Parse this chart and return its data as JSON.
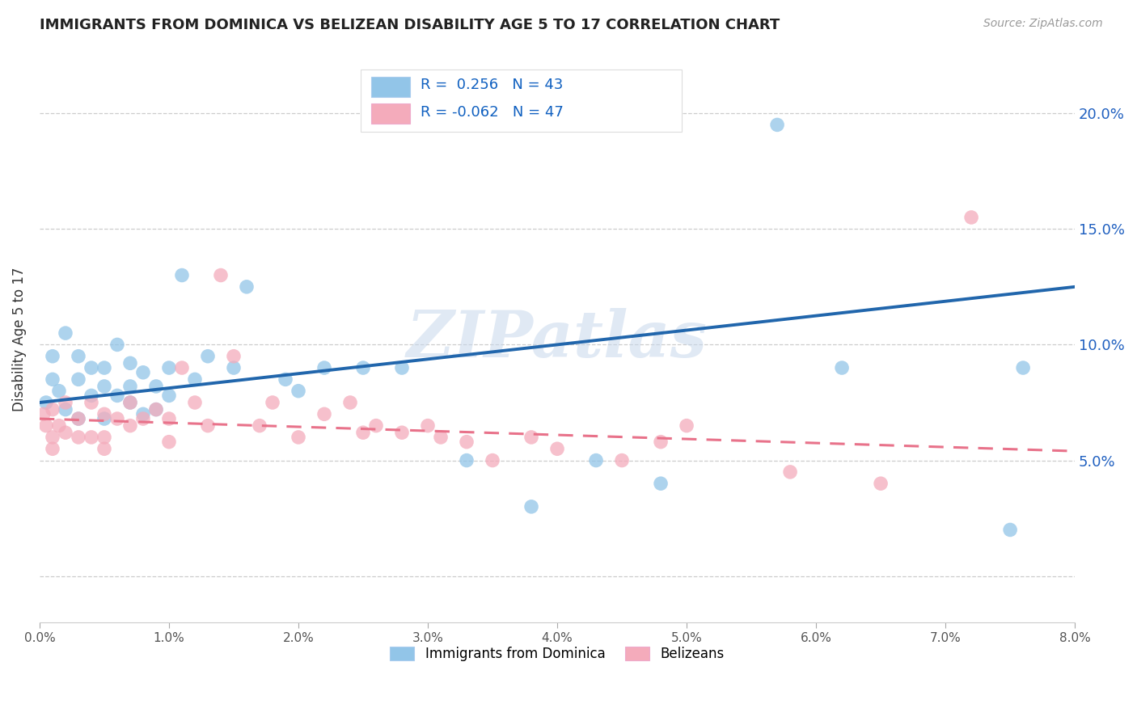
{
  "title": "IMMIGRANTS FROM DOMINICA VS BELIZEAN DISABILITY AGE 5 TO 17 CORRELATION CHART",
  "source": "Source: ZipAtlas.com",
  "ylabel": "Disability Age 5 to 17",
  "y_ticks": [
    0.0,
    0.05,
    0.1,
    0.15,
    0.2
  ],
  "y_tick_labels": [
    "",
    "5.0%",
    "10.0%",
    "15.0%",
    "20.0%"
  ],
  "xlim": [
    0.0,
    0.08
  ],
  "ylim": [
    -0.02,
    0.225
  ],
  "legend_label1": "Immigrants from Dominica",
  "legend_label2": "Belizeans",
  "r1": 0.256,
  "n1": 43,
  "r2": -0.062,
  "n2": 47,
  "color1": "#92C5E8",
  "color2": "#F4ABBB",
  "line_color1": "#2166AC",
  "line_color2": "#E8728A",
  "scatter1_x": [
    0.0005,
    0.001,
    0.001,
    0.0015,
    0.002,
    0.002,
    0.003,
    0.003,
    0.003,
    0.004,
    0.004,
    0.005,
    0.005,
    0.005,
    0.006,
    0.006,
    0.007,
    0.007,
    0.007,
    0.008,
    0.008,
    0.009,
    0.009,
    0.01,
    0.01,
    0.011,
    0.012,
    0.013,
    0.015,
    0.016,
    0.019,
    0.02,
    0.022,
    0.025,
    0.028,
    0.033,
    0.038,
    0.043,
    0.048,
    0.057,
    0.062,
    0.075,
    0.076
  ],
  "scatter1_y": [
    0.075,
    0.095,
    0.085,
    0.08,
    0.105,
    0.072,
    0.095,
    0.085,
    0.068,
    0.09,
    0.078,
    0.09,
    0.082,
    0.068,
    0.1,
    0.078,
    0.092,
    0.082,
    0.075,
    0.088,
    0.07,
    0.082,
    0.072,
    0.09,
    0.078,
    0.13,
    0.085,
    0.095,
    0.09,
    0.125,
    0.085,
    0.08,
    0.09,
    0.09,
    0.09,
    0.05,
    0.03,
    0.05,
    0.04,
    0.195,
    0.09,
    0.02,
    0.09
  ],
  "scatter2_x": [
    0.0003,
    0.0005,
    0.001,
    0.001,
    0.001,
    0.0015,
    0.002,
    0.002,
    0.003,
    0.003,
    0.004,
    0.004,
    0.005,
    0.005,
    0.005,
    0.006,
    0.007,
    0.007,
    0.008,
    0.009,
    0.01,
    0.01,
    0.011,
    0.012,
    0.013,
    0.014,
    0.015,
    0.017,
    0.018,
    0.02,
    0.022,
    0.024,
    0.025,
    0.026,
    0.028,
    0.03,
    0.031,
    0.033,
    0.035,
    0.038,
    0.04,
    0.045,
    0.048,
    0.05,
    0.058,
    0.065,
    0.072
  ],
  "scatter2_y": [
    0.07,
    0.065,
    0.072,
    0.06,
    0.055,
    0.065,
    0.075,
    0.062,
    0.068,
    0.06,
    0.075,
    0.06,
    0.07,
    0.06,
    0.055,
    0.068,
    0.075,
    0.065,
    0.068,
    0.072,
    0.068,
    0.058,
    0.09,
    0.075,
    0.065,
    0.13,
    0.095,
    0.065,
    0.075,
    0.06,
    0.07,
    0.075,
    0.062,
    0.065,
    0.062,
    0.065,
    0.06,
    0.058,
    0.05,
    0.06,
    0.055,
    0.05,
    0.058,
    0.065,
    0.045,
    0.04,
    0.155
  ],
  "background_color": "#ffffff",
  "grid_color": "#CCCCCC"
}
